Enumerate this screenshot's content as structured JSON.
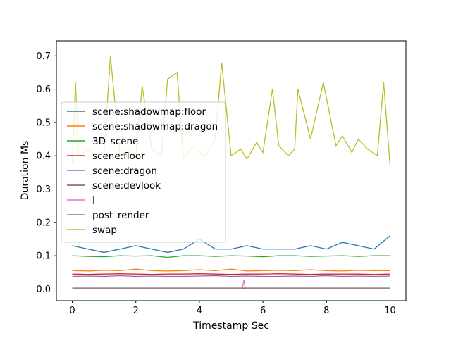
{
  "chart_data": {
    "type": "line",
    "title": "",
    "xlabel": "Timestamp Sec",
    "ylabel": "Duration Ms",
    "xlim": [
      -0.5,
      10.5
    ],
    "ylim": [
      -0.035,
      0.745
    ],
    "xticks": [
      0,
      2,
      4,
      6,
      8,
      10
    ],
    "xtick_labels": [
      "0",
      "2",
      "4",
      "6",
      "8",
      "10"
    ],
    "yticks": [
      0.0,
      0.1,
      0.2,
      0.3,
      0.4,
      0.5,
      0.6,
      0.7
    ],
    "ytick_labels": [
      "0.0",
      "0.1",
      "0.2",
      "0.3",
      "0.4",
      "0.5",
      "0.6",
      "0.7"
    ],
    "grid": false,
    "legend_position": "center-left",
    "series": [
      {
        "name": "scene:shadowmap:floor",
        "color": "#1f77b4",
        "x": [
          0,
          0.5,
          1,
          1.5,
          2,
          2.5,
          3,
          3.5,
          4,
          4.5,
          5,
          5.5,
          6,
          6.5,
          7,
          7.5,
          8,
          8.5,
          9,
          9.5,
          10
        ],
        "values": [
          0.13,
          0.12,
          0.11,
          0.12,
          0.13,
          0.12,
          0.11,
          0.12,
          0.15,
          0.12,
          0.12,
          0.13,
          0.12,
          0.12,
          0.12,
          0.13,
          0.12,
          0.14,
          0.13,
          0.12,
          0.16
        ]
      },
      {
        "name": "scene:shadowmap:dragon",
        "color": "#ff7f0e",
        "x": [
          0,
          0.5,
          1,
          1.5,
          2,
          2.5,
          3,
          3.5,
          4,
          4.5,
          5,
          5.5,
          6,
          6.5,
          7,
          7.5,
          8,
          8.5,
          9,
          9.5,
          10
        ],
        "values": [
          0.055,
          0.054,
          0.056,
          0.055,
          0.06,
          0.055,
          0.054,
          0.055,
          0.058,
          0.055,
          0.06,
          0.054,
          0.055,
          0.056,
          0.055,
          0.058,
          0.055,
          0.054,
          0.056,
          0.055,
          0.055
        ]
      },
      {
        "name": "3D_scene",
        "color": "#2ca02c",
        "x": [
          0,
          0.5,
          1,
          1.5,
          2,
          2.5,
          3,
          3.5,
          4,
          4.5,
          5,
          5.5,
          6,
          6.5,
          7,
          7.5,
          8,
          8.5,
          9,
          9.5,
          10
        ],
        "values": [
          0.1,
          0.098,
          0.097,
          0.1,
          0.099,
          0.1,
          0.095,
          0.1,
          0.1,
          0.098,
          0.1,
          0.099,
          0.097,
          0.1,
          0.1,
          0.098,
          0.099,
          0.1,
          0.098,
          0.1,
          0.1
        ]
      },
      {
        "name": "scene:floor",
        "color": "#d62728",
        "x": [
          0,
          0.5,
          1,
          1.5,
          2,
          2.5,
          3,
          3.5,
          4,
          4.5,
          5,
          5.5,
          6,
          6.5,
          7,
          7.5,
          8,
          8.5,
          9,
          9.5,
          10
        ],
        "values": [
          0.045,
          0.044,
          0.045,
          0.046,
          0.045,
          0.044,
          0.045,
          0.045,
          0.046,
          0.045,
          0.044,
          0.045,
          0.045,
          0.046,
          0.045,
          0.044,
          0.045,
          0.045,
          0.045,
          0.044,
          0.045
        ]
      },
      {
        "name": "scene:dragon",
        "color": "#9467bd",
        "x": [
          0,
          0.5,
          1,
          1.5,
          2,
          2.5,
          3,
          3.5,
          4,
          4.5,
          5,
          5.5,
          6,
          6.5,
          7,
          7.5,
          8,
          8.5,
          9,
          9.5,
          10
        ],
        "values": [
          0.038,
          0.039,
          0.038,
          0.04,
          0.038,
          0.039,
          0.038,
          0.038,
          0.039,
          0.04,
          0.038,
          0.039,
          0.038,
          0.038,
          0.039,
          0.038,
          0.04,
          0.038,
          0.039,
          0.038,
          0.039
        ]
      },
      {
        "name": "scene:devlook",
        "color": "#8c564b",
        "x": [
          0,
          0.5,
          1,
          1.5,
          2,
          2.5,
          3,
          3.5,
          4,
          4.5,
          5,
          5.5,
          6,
          6.5,
          7,
          7.5,
          8,
          8.5,
          9,
          9.5,
          10
        ],
        "values": [
          0.002,
          0.002,
          0.002,
          0.002,
          0.002,
          0.002,
          0.002,
          0.002,
          0.002,
          0.002,
          0.002,
          0.002,
          0.002,
          0.002,
          0.002,
          0.002,
          0.002,
          0.002,
          0.002,
          0.002,
          0.002
        ]
      },
      {
        "name": "I",
        "color": "#e377c2",
        "x": [
          0,
          1,
          2,
          3,
          4,
          5,
          5.35,
          5.4,
          5.45,
          6,
          7,
          8,
          9,
          10
        ],
        "values": [
          0.001,
          0.001,
          0.001,
          0.001,
          0.001,
          0.001,
          0.001,
          0.027,
          0.001,
          0.001,
          0.001,
          0.001,
          0.001,
          0.001
        ]
      },
      {
        "name": "post_render",
        "color": "#7f7f7f",
        "x": [
          0,
          1,
          2,
          3,
          4,
          5,
          6,
          7,
          8,
          9,
          10
        ],
        "values": [
          0.003,
          0.003,
          0.003,
          0.003,
          0.003,
          0.003,
          0.003,
          0.003,
          0.003,
          0.003,
          0.003
        ]
      },
      {
        "name": "swap",
        "color": "#bcbd22",
        "x": [
          0,
          0.1,
          0.2,
          0.5,
          0.8,
          1,
          1.2,
          1.5,
          1.8,
          2,
          2.2,
          2.5,
          2.8,
          3,
          3.3,
          3.5,
          3.8,
          4,
          4.2,
          4.5,
          4.7,
          5,
          5.3,
          5.5,
          5.8,
          6,
          6.3,
          6.5,
          6.8,
          7,
          7.1,
          7.5,
          7.9,
          8.3,
          8.5,
          8.8,
          9,
          9.3,
          9.6,
          9.8,
          10
        ],
        "values": [
          0.38,
          0.62,
          0.4,
          0.42,
          0.39,
          0.41,
          0.7,
          0.4,
          0.42,
          0.4,
          0.61,
          0.42,
          0.4,
          0.63,
          0.65,
          0.39,
          0.43,
          0.41,
          0.4,
          0.45,
          0.68,
          0.4,
          0.42,
          0.39,
          0.44,
          0.41,
          0.6,
          0.43,
          0.4,
          0.42,
          0.6,
          0.45,
          0.62,
          0.43,
          0.46,
          0.41,
          0.45,
          0.42,
          0.4,
          0.62,
          0.37
        ]
      }
    ]
  }
}
